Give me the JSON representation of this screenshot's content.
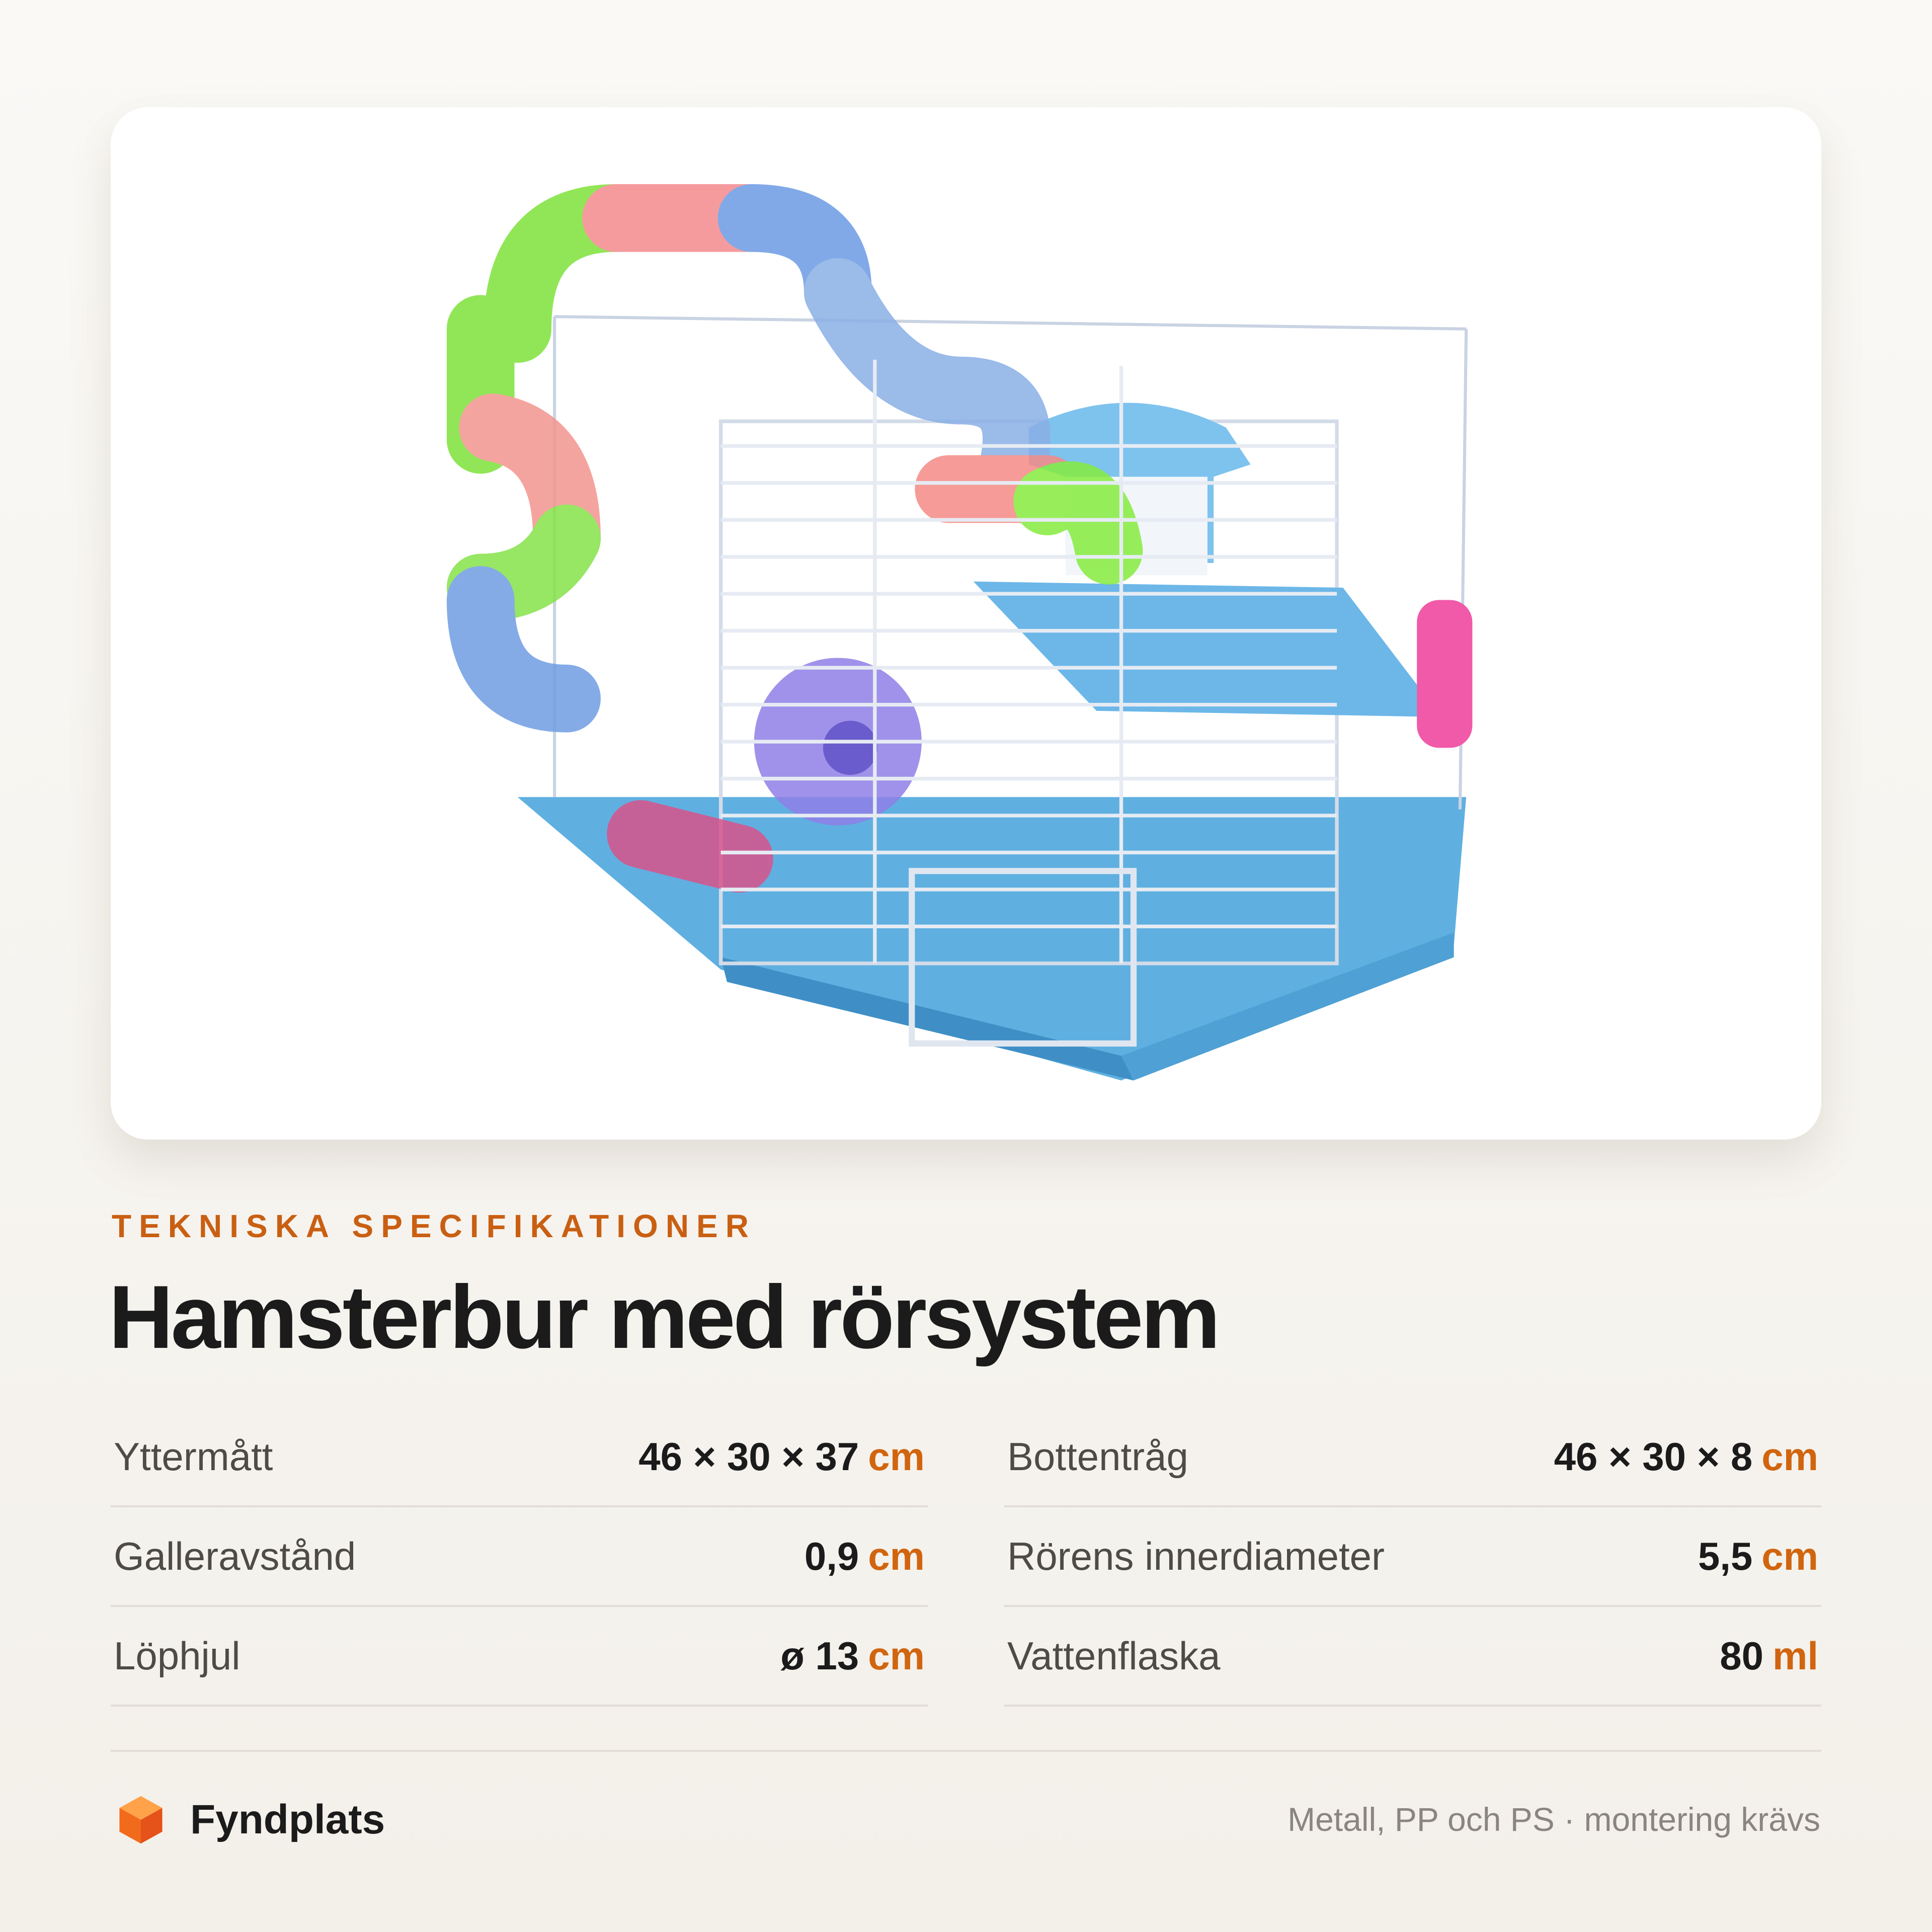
{
  "eyebrow": "TEKNISKA SPECIFIKATIONER",
  "title": "Hamsterbur med rörsystem",
  "specs": [
    {
      "label": "Yttermått",
      "value": "46 × 30 × 37",
      "unit": "cm"
    },
    {
      "label": "Bottentråg",
      "value": "46 × 30 × 8",
      "unit": "cm"
    },
    {
      "label": "Galleravstånd",
      "value": "0,9",
      "unit": "cm"
    },
    {
      "label": "Rörens innerdiameter",
      "value": "5,5",
      "unit": "cm"
    },
    {
      "label": "Löphjul",
      "value": "ø 13",
      "unit": "cm"
    },
    {
      "label": "Vattenflaska",
      "value": "80",
      "unit": "ml"
    }
  ],
  "footer": {
    "brand": "Fyndplats",
    "note": "Metall, PP och PS · montering krävs"
  }
}
